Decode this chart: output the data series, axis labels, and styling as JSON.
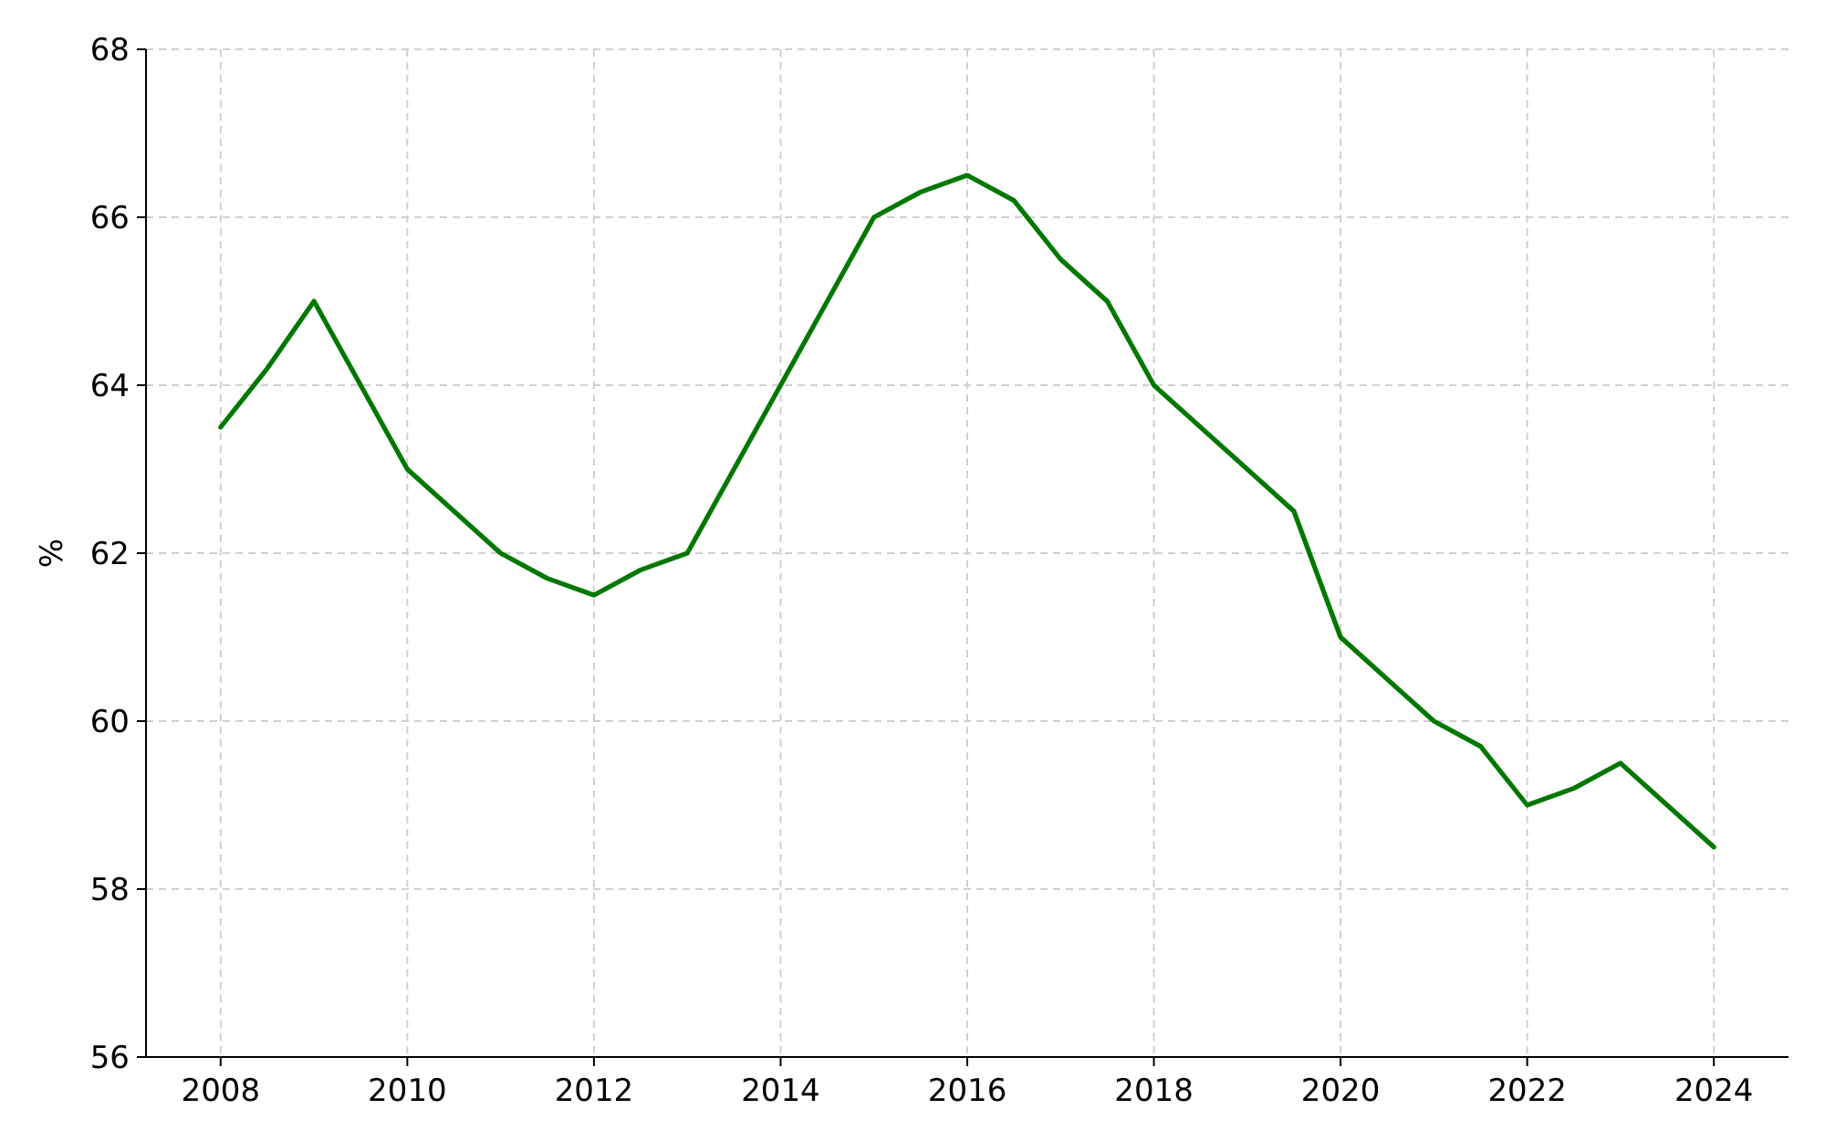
{
  "chart_data": {
    "type": "line",
    "ylabel": "%",
    "grid": true,
    "xlim": [
      2007.2,
      2024.8
    ],
    "xticks": [
      2008,
      2010,
      2012,
      2014,
      2016,
      2018,
      2020,
      2022,
      2024
    ],
    "ylim": [
      56,
      68
    ],
    "yticks": [
      56,
      58,
      60,
      62,
      64,
      66,
      68
    ],
    "x": [
      2008,
      2008.5,
      2009,
      2010,
      2011,
      2011.5,
      2012,
      2012.5,
      2013,
      2014,
      2015,
      2015.5,
      2016,
      2016.5,
      2017,
      2017.5,
      2018,
      2019.5,
      2020,
      2021,
      2021.5,
      2022,
      2022.5,
      2023,
      2024
    ],
    "series": [
      {
        "color": "#007800",
        "values": [
          63.5,
          64.2,
          65,
          63,
          62,
          61.7,
          61.5,
          61.8,
          62,
          64,
          66,
          66.3,
          66.5,
          66.2,
          65.5,
          65,
          64,
          62.5,
          61,
          60,
          59.7,
          59,
          59.2,
          59.5,
          58.5
        ]
      }
    ]
  }
}
